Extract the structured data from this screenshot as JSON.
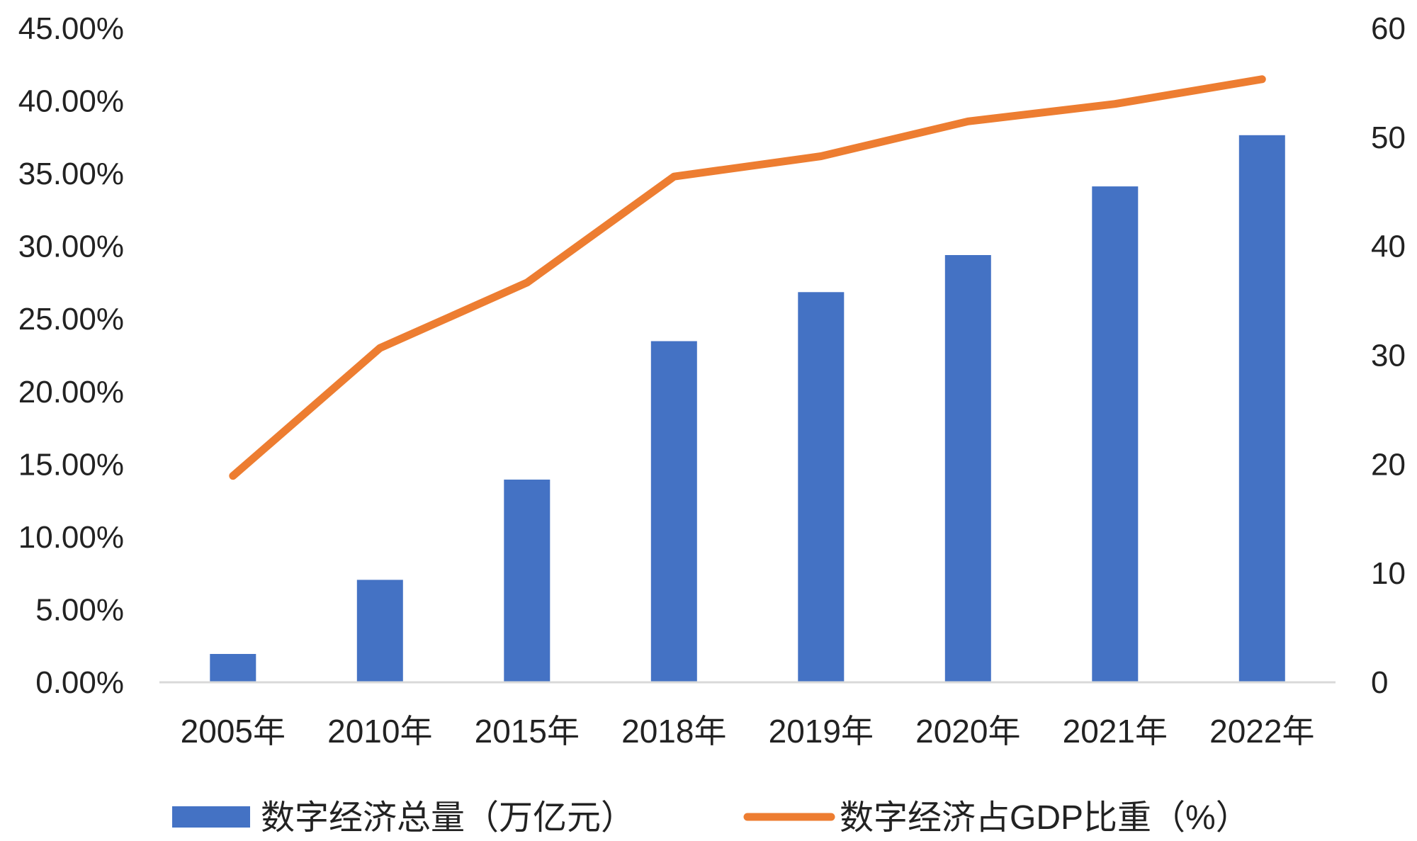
{
  "chart_data": {
    "type": "bar+line",
    "categories": [
      "2005年",
      "2010年",
      "2015年",
      "2018年",
      "2019年",
      "2020年",
      "2021年",
      "2022年"
    ],
    "series": [
      {
        "name": "数字经济总量（万亿元）",
        "type": "bar",
        "axis": "right",
        "color": "#4472C4",
        "values": [
          2.6,
          9.4,
          18.6,
          31.3,
          35.8,
          39.2,
          45.5,
          50.2
        ]
      },
      {
        "name": "数字经济占GDP比重（%）",
        "type": "line",
        "axis": "left",
        "color": "#ED7D31",
        "values": [
          14.2,
          23.0,
          27.5,
          34.8,
          36.2,
          38.6,
          39.8,
          41.5
        ]
      }
    ],
    "left_axis": {
      "ylim": [
        0,
        45
      ],
      "ticks": [
        0,
        5,
        10,
        15,
        20,
        25,
        30,
        35,
        40,
        45
      ],
      "tick_labels": [
        "0.00%",
        "5.00%",
        "10.00%",
        "15.00%",
        "20.00%",
        "25.00%",
        "30.00%",
        "35.00%",
        "40.00%",
        "45.00%"
      ]
    },
    "right_axis": {
      "ylim": [
        0,
        60
      ],
      "ticks": [
        0,
        10,
        20,
        30,
        40,
        50,
        60
      ],
      "tick_labels": [
        "0",
        "10",
        "20",
        "30",
        "40",
        "50",
        "60"
      ]
    },
    "title": "",
    "xlabel": "",
    "ylabel": "",
    "grid": false,
    "legend": "bottom"
  }
}
